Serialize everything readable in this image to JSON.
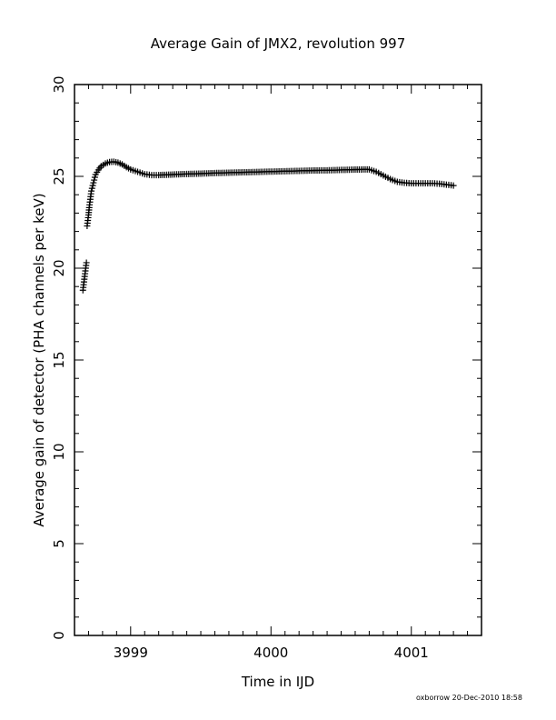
{
  "chart_data": {
    "type": "scatter",
    "title": "Average Gain of JMX2, revolution 997",
    "xlabel": "Time in IJD",
    "ylabel": "Average gain of detector (PHA channels per keV)",
    "xlim": [
      3998.6,
      4001.5
    ],
    "ylim": [
      0,
      30
    ],
    "xticks": [
      3999,
      4000,
      4001
    ],
    "xtick_labels": [
      "3999",
      "4000",
      "4001"
    ],
    "yticks": [
      0,
      5,
      10,
      15,
      20,
      25,
      30
    ],
    "ytick_labels": [
      "0",
      "5",
      "10",
      "15",
      "20",
      "25",
      "30"
    ],
    "marker": "plus",
    "grid": false,
    "series": [
      {
        "x": [
          3998.66,
          3998.665,
          3998.67,
          3998.675,
          3998.68,
          3998.685,
          3998.69,
          3998.695,
          3998.7,
          3998.705,
          3998.71,
          3998.715,
          3998.72,
          3998.73,
          3998.74,
          3998.75,
          3998.77,
          3998.79,
          3998.82,
          3998.85,
          3998.88,
          3998.91,
          3998.94,
          3998.97,
          3999.0,
          3999.05,
          3999.1,
          3999.15,
          3999.2,
          3999.3,
          3999.4,
          3999.5,
          3999.6,
          3999.7,
          3999.8,
          3999.9,
          4000.0,
          4000.1,
          4000.2,
          4000.3,
          4000.4,
          4000.5,
          4000.6,
          4000.7,
          4000.75,
          4000.8,
          4000.85,
          4000.9,
          4000.95,
          4001.0,
          4001.05,
          4001.1,
          4001.15,
          4001.2,
          4001.25,
          4001.3
        ],
        "y": [
          18.8,
          19.1,
          19.4,
          19.7,
          20.0,
          20.3,
          22.3,
          22.6,
          22.9,
          23.3,
          23.6,
          23.9,
          24.2,
          24.5,
          24.8,
          25.1,
          25.35,
          25.55,
          25.7,
          25.78,
          25.8,
          25.75,
          25.65,
          25.5,
          25.38,
          25.25,
          25.12,
          25.07,
          25.07,
          25.1,
          25.13,
          25.15,
          25.18,
          25.2,
          25.22,
          25.24,
          25.26,
          25.28,
          25.3,
          25.32,
          25.33,
          25.35,
          25.37,
          25.38,
          25.25,
          25.05,
          24.85,
          24.7,
          24.65,
          24.62,
          24.62,
          24.62,
          24.62,
          24.6,
          24.55,
          24.5
        ]
      }
    ]
  },
  "footer": "oxborrow 20-Dec-2010 18:58"
}
